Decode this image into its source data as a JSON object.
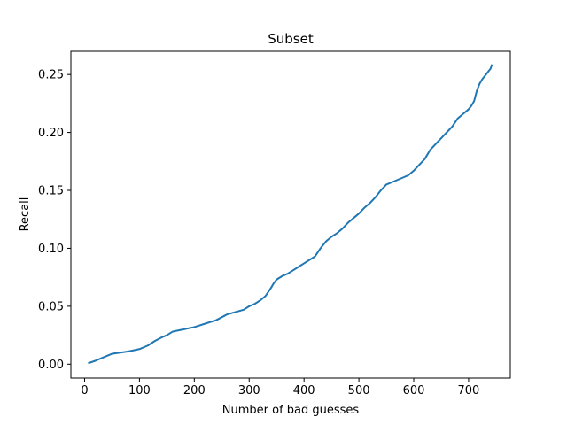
{
  "chart_data": {
    "type": "line",
    "title": "Subset",
    "xlabel": "Number of bad guesses",
    "ylabel": "Recall",
    "xlim": [
      -25,
      776
    ],
    "ylim": [
      -0.012,
      0.27
    ],
    "xticks": [
      0,
      100,
      200,
      300,
      400,
      500,
      600,
      700
    ],
    "xtick_labels": [
      "0",
      "100",
      "200",
      "300",
      "400",
      "500",
      "600",
      "700"
    ],
    "yticks": [
      0.0,
      0.05,
      0.1,
      0.15,
      0.2,
      0.25
    ],
    "ytick_labels": [
      "0.00",
      "0.05",
      "0.10",
      "0.15",
      "0.20",
      "0.25"
    ],
    "grid": false,
    "legend": "none",
    "color": "#1f77b4",
    "series": [
      {
        "x": [
          8,
          20,
          35,
          50,
          65,
          80,
          100,
          115,
          128,
          140,
          150,
          160,
          180,
          200,
          220,
          240,
          260,
          275,
          290,
          300,
          310,
          320,
          330,
          340,
          345,
          350,
          360,
          370,
          380,
          390,
          400,
          410,
          420,
          430,
          440,
          450,
          460,
          470,
          480,
          490,
          500,
          510,
          520,
          530,
          540,
          550,
          560,
          570,
          580,
          590,
          600,
          610,
          620,
          630,
          640,
          650,
          660,
          670,
          680,
          690,
          700,
          705,
          710,
          715,
          720,
          725,
          730,
          735,
          740,
          742
        ],
        "y": [
          0.001,
          0.003,
          0.006,
          0.009,
          0.01,
          0.011,
          0.013,
          0.016,
          0.02,
          0.023,
          0.025,
          0.028,
          0.03,
          0.032,
          0.035,
          0.038,
          0.043,
          0.045,
          0.047,
          0.05,
          0.052,
          0.055,
          0.059,
          0.066,
          0.07,
          0.073,
          0.076,
          0.078,
          0.081,
          0.084,
          0.087,
          0.09,
          0.093,
          0.1,
          0.106,
          0.11,
          0.113,
          0.117,
          0.122,
          0.126,
          0.13,
          0.135,
          0.139,
          0.144,
          0.15,
          0.155,
          0.157,
          0.159,
          0.161,
          0.163,
          0.167,
          0.172,
          0.177,
          0.185,
          0.19,
          0.195,
          0.2,
          0.205,
          0.212,
          0.216,
          0.22,
          0.223,
          0.227,
          0.236,
          0.242,
          0.246,
          0.249,
          0.252,
          0.255,
          0.258
        ]
      }
    ]
  }
}
